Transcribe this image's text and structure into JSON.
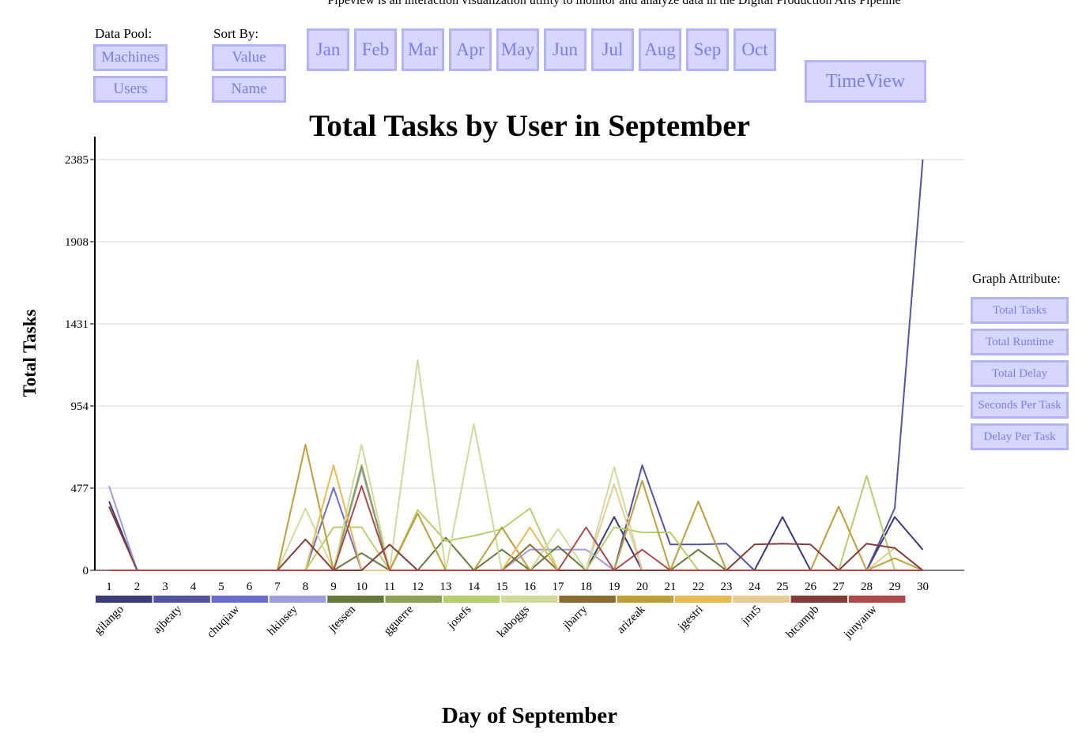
{
  "header": {
    "subtitle": "Pipeview is an interaction visualization utility to monitor and analyze data in the Digital Production Arts Pipeline"
  },
  "controls": {
    "data_pool_label": "Data Pool:",
    "data_pool_options": [
      "Machines",
      "Users"
    ],
    "sort_by_label": "Sort By:",
    "sort_by_options": [
      "Value",
      "Name"
    ],
    "months": [
      "Jan",
      "Feb",
      "Mar",
      "Apr",
      "May",
      "Jun",
      "Jul",
      "Aug",
      "Sep",
      "Oct"
    ],
    "selected_month": "Sep",
    "timeview_label": "TimeView",
    "graph_attribute_label": "Graph Attribute:",
    "graph_attributes": [
      "Total Tasks",
      "Total Runtime",
      "Total Delay",
      "Seconds Per Task",
      "Delay Per Task"
    ],
    "selected_attribute": "Total Tasks"
  },
  "chart_data": {
    "type": "line",
    "title": "Total Tasks by User in September",
    "xlabel": "Day of September",
    "ylabel": "Total Tasks",
    "x": [
      1,
      2,
      3,
      4,
      5,
      6,
      7,
      8,
      9,
      10,
      11,
      12,
      13,
      14,
      15,
      16,
      17,
      18,
      19,
      20,
      21,
      22,
      23,
      24,
      25,
      26,
      27,
      28,
      29,
      30
    ],
    "yticks": [
      0,
      477,
      954,
      1431,
      1908,
      2385
    ],
    "ylim": [
      0,
      2385
    ],
    "grid": true,
    "legend": "colored bars below x-axis",
    "series": [
      {
        "name": "gilango",
        "color": "#3b3b7a",
        "values": [
          400,
          0,
          0,
          0,
          0,
          0,
          0,
          0,
          0,
          0,
          0,
          0,
          0,
          0,
          0,
          0,
          0,
          0,
          310,
          0,
          0,
          0,
          0,
          0,
          310,
          0,
          0,
          0,
          310,
          120
        ]
      },
      {
        "name": "ajbeaty",
        "color": "#5254a3",
        "values": [
          0,
          0,
          0,
          0,
          0,
          0,
          0,
          0,
          0,
          0,
          0,
          0,
          0,
          0,
          0,
          0,
          0,
          0,
          0,
          610,
          150,
          150,
          155,
          0,
          0,
          0,
          0,
          0,
          360,
          2385
        ]
      },
      {
        "name": "chuqiaw",
        "color": "#6b6ecf",
        "values": [
          0,
          0,
          0,
          0,
          0,
          0,
          0,
          0,
          480,
          0,
          0,
          0,
          0,
          0,
          0,
          0,
          0,
          0,
          0,
          0,
          0,
          0,
          0,
          0,
          0,
          0,
          0,
          0,
          0,
          0
        ]
      },
      {
        "name": "hkinsey",
        "color": "#9c9ede",
        "values": [
          490,
          0,
          0,
          0,
          0,
          0,
          0,
          0,
          0,
          590,
          0,
          0,
          0,
          0,
          0,
          120,
          120,
          120,
          0,
          0,
          0,
          0,
          0,
          0,
          0,
          0,
          0,
          0,
          0,
          0
        ]
      },
      {
        "name": "jtessen",
        "color": "#637939",
        "values": [
          0,
          0,
          0,
          0,
          0,
          0,
          0,
          0,
          0,
          100,
          0,
          0,
          190,
          0,
          120,
          0,
          140,
          0,
          0,
          0,
          0,
          120,
          0,
          0,
          0,
          0,
          0,
          0,
          0,
          0
        ]
      },
      {
        "name": "gguerre",
        "color": "#8ca252",
        "values": [
          0,
          0,
          0,
          0,
          0,
          0,
          0,
          0,
          0,
          610,
          0,
          0,
          0,
          0,
          0,
          0,
          0,
          0,
          0,
          0,
          0,
          0,
          0,
          0,
          0,
          0,
          0,
          0,
          0,
          0
        ]
      },
      {
        "name": "josefs",
        "color": "#b5cf6b",
        "values": [
          0,
          0,
          0,
          0,
          0,
          0,
          0,
          0,
          250,
          250,
          0,
          350,
          170,
          200,
          240,
          360,
          0,
          0,
          250,
          220,
          220,
          0,
          0,
          0,
          0,
          0,
          0,
          550,
          0,
          0
        ]
      },
      {
        "name": "kaboggs",
        "color": "#cedb9c",
        "values": [
          0,
          0,
          0,
          0,
          0,
          0,
          0,
          360,
          0,
          730,
          0,
          1220,
          0,
          850,
          0,
          0,
          240,
          0,
          600,
          0,
          0,
          0,
          0,
          0,
          0,
          0,
          0,
          0,
          0,
          0
        ]
      },
      {
        "name": "jbarry",
        "color": "#8c6d31",
        "values": [
          0,
          0,
          0,
          0,
          0,
          0,
          0,
          0,
          0,
          0,
          0,
          0,
          0,
          0,
          0,
          150,
          0,
          0,
          0,
          0,
          0,
          0,
          0,
          0,
          0,
          0,
          0,
          0,
          0,
          0
        ]
      },
      {
        "name": "arizeak",
        "color": "#bd9e39",
        "values": [
          0,
          0,
          0,
          0,
          0,
          0,
          0,
          730,
          0,
          0,
          0,
          330,
          0,
          0,
          250,
          0,
          0,
          0,
          0,
          520,
          0,
          400,
          0,
          0,
          0,
          0,
          370,
          0,
          70,
          0
        ]
      },
      {
        "name": "jgestri",
        "color": "#e7ba52",
        "values": [
          0,
          0,
          0,
          0,
          0,
          0,
          0,
          0,
          610,
          0,
          0,
          0,
          0,
          0,
          0,
          250,
          0,
          0,
          0,
          0,
          0,
          0,
          0,
          0,
          0,
          0,
          0,
          0,
          0,
          0
        ]
      },
      {
        "name": "jmt5",
        "color": "#e7cb94",
        "values": [
          0,
          0,
          0,
          0,
          0,
          0,
          0,
          0,
          0,
          0,
          0,
          0,
          0,
          0,
          0,
          0,
          0,
          0,
          500,
          0,
          0,
          0,
          0,
          0,
          0,
          0,
          0,
          0,
          130,
          0
        ]
      },
      {
        "name": "btcampb",
        "color": "#843c39",
        "values": [
          370,
          0,
          0,
          0,
          0,
          0,
          0,
          180,
          0,
          0,
          150,
          0,
          0,
          0,
          0,
          0,
          0,
          0,
          0,
          0,
          0,
          0,
          0,
          150,
          155,
          150,
          0,
          155,
          130,
          0
        ]
      },
      {
        "name": "junyanw",
        "color": "#ad494a",
        "values": [
          0,
          0,
          0,
          0,
          0,
          0,
          0,
          0,
          0,
          490,
          0,
          0,
          0,
          0,
          0,
          0,
          0,
          250,
          0,
          120,
          0,
          0,
          0,
          0,
          0,
          0,
          0,
          0,
          0,
          0
        ]
      }
    ]
  }
}
